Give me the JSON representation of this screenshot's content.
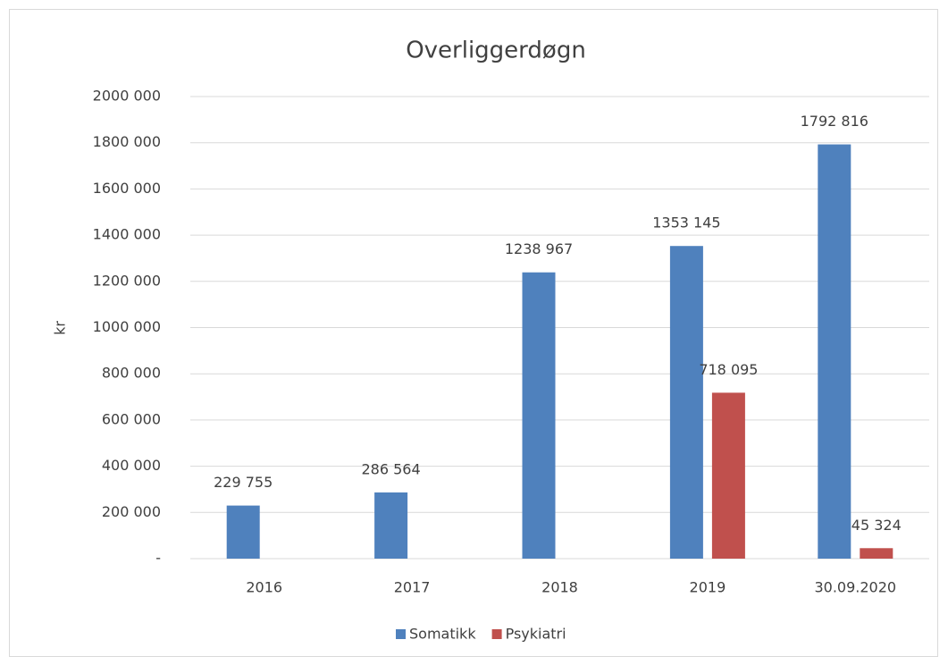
{
  "chart_data": {
    "type": "bar",
    "title": "Overliggerdøgn",
    "y_label": "kr",
    "categories": [
      "2016",
      "2017",
      "2018",
      "2019",
      "30.09.2020"
    ],
    "series": [
      {
        "name": "Somatikk",
        "color": "#4f81bd",
        "values": [
          229755,
          286564,
          1238967,
          1353145,
          1792816
        ],
        "value_labels": [
          "229 755",
          "286 564",
          "1238 967",
          "1353 145",
          "1792 816"
        ]
      },
      {
        "name": "Psykiatri",
        "color": "#c0504d",
        "values": [
          null,
          null,
          null,
          718095,
          45324
        ],
        "value_labels": [
          null,
          null,
          null,
          "718 095",
          "45 324"
        ]
      }
    ],
    "ylim": [
      0,
      2000000
    ],
    "yticks": [
      {
        "value": 0,
        "label": "-"
      },
      {
        "value": 200000,
        "label": "200 000"
      },
      {
        "value": 400000,
        "label": "400 000"
      },
      {
        "value": 600000,
        "label": "600 000"
      },
      {
        "value": 800000,
        "label": "800 000"
      },
      {
        "value": 1000000,
        "label": "1000 000"
      },
      {
        "value": 1200000,
        "label": "1200 000"
      },
      {
        "value": 1400000,
        "label": "1400 000"
      },
      {
        "value": 1600000,
        "label": "1600 000"
      },
      {
        "value": 1800000,
        "label": "1800 000"
      },
      {
        "value": 2000000,
        "label": "2000 000"
      }
    ],
    "grid": true,
    "legend": "bottom"
  }
}
